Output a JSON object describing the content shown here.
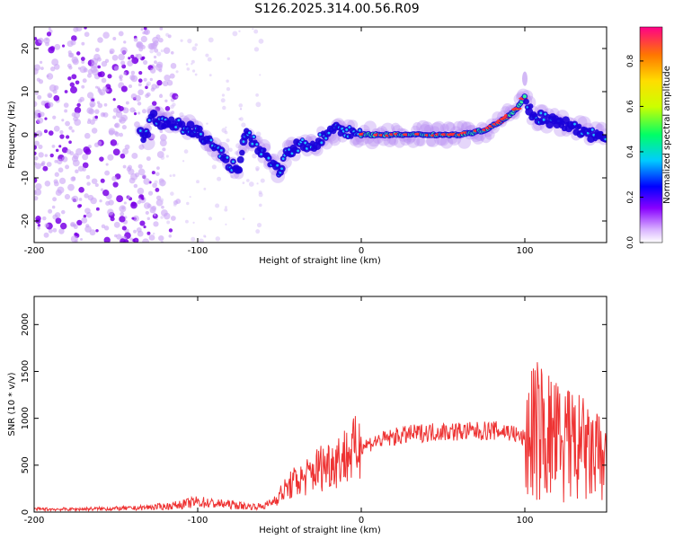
{
  "title": "S126.2025.314.00.56.R09",
  "chart_data": [
    {
      "type": "heatmap",
      "name": "spectrogram",
      "xlabel": "Height of straight line (km)",
      "ylabel": "Frequency (Hz)",
      "xlim": [
        -200,
        150
      ],
      "ylim": [
        -25,
        25
      ],
      "xticks": [
        -200,
        -100,
        0,
        100
      ],
      "yticks": [
        -20,
        -10,
        0,
        10,
        20
      ],
      "colorbar": {
        "label": "Normalized spectral amplitude",
        "range": [
          0,
          0.95
        ],
        "ticks": [
          0.0,
          0.2,
          0.4,
          0.6,
          0.8
        ]
      },
      "ridge": [
        [
          -130,
          4
        ],
        [
          -120,
          3
        ],
        [
          -110,
          2
        ],
        [
          -100,
          1
        ],
        [
          -95,
          -1
        ],
        [
          -90,
          -3
        ],
        [
          -85,
          -5
        ],
        [
          -80,
          -7
        ],
        [
          -75,
          -8
        ],
        [
          -70,
          1
        ],
        [
          -65,
          -2
        ],
        [
          -60,
          -4
        ],
        [
          -55,
          -6
        ],
        [
          -50,
          -9
        ],
        [
          -45,
          -4
        ],
        [
          -40,
          -3
        ],
        [
          -35,
          -2
        ],
        [
          -30,
          -3
        ],
        [
          -25,
          -1
        ],
        [
          -20,
          0
        ],
        [
          -15,
          1
        ],
        [
          -10,
          1
        ],
        [
          0,
          0
        ],
        [
          20,
          0
        ],
        [
          40,
          0
        ],
        [
          60,
          0
        ],
        [
          75,
          1
        ],
        [
          85,
          3
        ],
        [
          95,
          6
        ],
        [
          100,
          9
        ],
        [
          105,
          4
        ],
        [
          110,
          4
        ],
        [
          120,
          3
        ],
        [
          130,
          2
        ],
        [
          140,
          0
        ],
        [
          150,
          0
        ]
      ],
      "high_amplitude_segment": [
        0,
        100
      ]
    },
    {
      "type": "line",
      "name": "snr",
      "xlabel": "Height of straight line (km)",
      "ylabel": "SNR (10 * v/v)",
      "xlim": [
        -200,
        150
      ],
      "ylim": [
        0,
        2300
      ],
      "xticks": [
        -200,
        -100,
        0,
        100
      ],
      "yticks": [
        0,
        500,
        1000,
        1500,
        2000
      ],
      "color": "#ee3333",
      "x": [
        -200,
        -180,
        -160,
        -140,
        -120,
        -110,
        -100,
        -90,
        -80,
        -70,
        -60,
        -55,
        -50,
        -45,
        -40,
        -35,
        -30,
        -25,
        -20,
        -15,
        -10,
        -5,
        0,
        10,
        20,
        30,
        40,
        50,
        60,
        70,
        80,
        90,
        95,
        100,
        105,
        110,
        115,
        120,
        125,
        130,
        135,
        140,
        145,
        150
      ],
      "values": [
        30,
        30,
        35,
        40,
        60,
        80,
        110,
        90,
        80,
        60,
        60,
        100,
        180,
        260,
        330,
        350,
        420,
        480,
        520,
        560,
        600,
        650,
        700,
        760,
        800,
        830,
        850,
        860,
        860,
        860,
        870,
        860,
        820,
        780,
        850,
        860,
        800,
        760,
        720,
        700,
        660,
        600,
        560,
        560
      ]
    }
  ]
}
